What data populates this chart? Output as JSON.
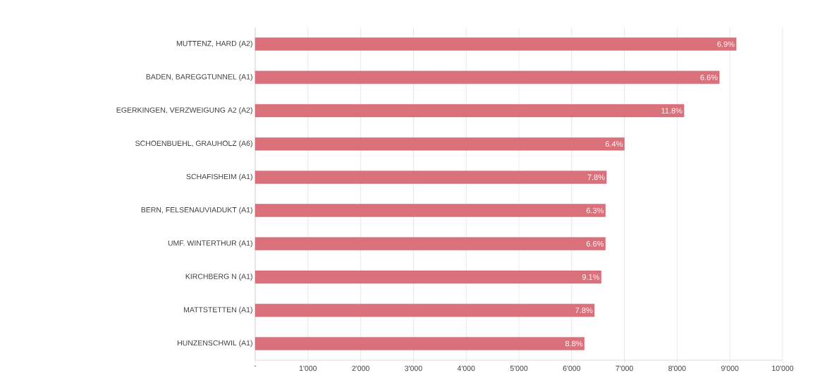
{
  "chart_data": {
    "type": "bar",
    "orientation": "horizontal",
    "categories": [
      "MUTTENZ, HARD (A2)",
      "BADEN, BAREGGTUNNEL (A1)",
      "EGERKINGEN, VERZWEIGUNG A2 (A2)",
      "SCHOENBUEHL, GRAUHOLZ (A6)",
      "SCHAFISHEIM (A1)",
      "BERN, FELSENAUVIADUKT (A1)",
      "UMF. WINTERTHUR (A1)",
      "KIRCHBERG N (A1)",
      "MATTSTETTEN (A1)",
      "HUNZENSCHWIL (A1)"
    ],
    "values": [
      9120,
      8800,
      8130,
      7000,
      6660,
      6640,
      6640,
      6560,
      6430,
      6240
    ],
    "annotations": [
      {
        "text": "6.9%",
        "x": 9120,
        "y": "MUTTENZ, HARD (A2)"
      },
      {
        "text": "6.6%",
        "x": 8800,
        "y": "BADEN, BAREGGTUNNEL (A1)"
      },
      {
        "text": "11.8%",
        "x": 8130,
        "y": "EGERKINGEN, VERZWEIGUNG A2 (A2)"
      },
      {
        "text": "6.4%",
        "x": 7000,
        "y": "SCHOENBUEHL, GRAUHOLZ (A6)"
      },
      {
        "text": "7.8%",
        "x": 6660,
        "y": "SCHAFISHEIM (A1)"
      },
      {
        "text": "6.3%",
        "x": 6640,
        "y": "BERN, FELSENAUVIADUKT (A1)"
      },
      {
        "text": "6.6%",
        "x": 6640,
        "y": "UMF. WINTERTHUR (A1)"
      },
      {
        "text": "9.1%",
        "x": 6560,
        "y": "KIRCHBERG N (A1)"
      },
      {
        "text": "7.8%",
        "x": 6430,
        "y": "MATTSTETTEN (A1)"
      },
      {
        "text": "8.8%",
        "x": 6240,
        "y": "HUNZENSCHWIL (A1)"
      }
    ],
    "color": "#d9707a",
    "xlim": [
      0,
      10000
    ],
    "xticks": [
      {
        "value": 0,
        "label": "-"
      },
      {
        "value": 1000,
        "label": "1'000"
      },
      {
        "value": 2000,
        "label": "2'000"
      },
      {
        "value": 3000,
        "label": "3'000"
      },
      {
        "value": 4000,
        "label": "4'000"
      },
      {
        "value": 5000,
        "label": "5'000"
      },
      {
        "value": 6000,
        "label": "6'000"
      },
      {
        "value": 7000,
        "label": "7'000"
      },
      {
        "value": 8000,
        "label": "8'000"
      },
      {
        "value": 9000,
        "label": "9'000"
      },
      {
        "value": 10000,
        "label": "10'000"
      }
    ],
    "grid": "x"
  }
}
